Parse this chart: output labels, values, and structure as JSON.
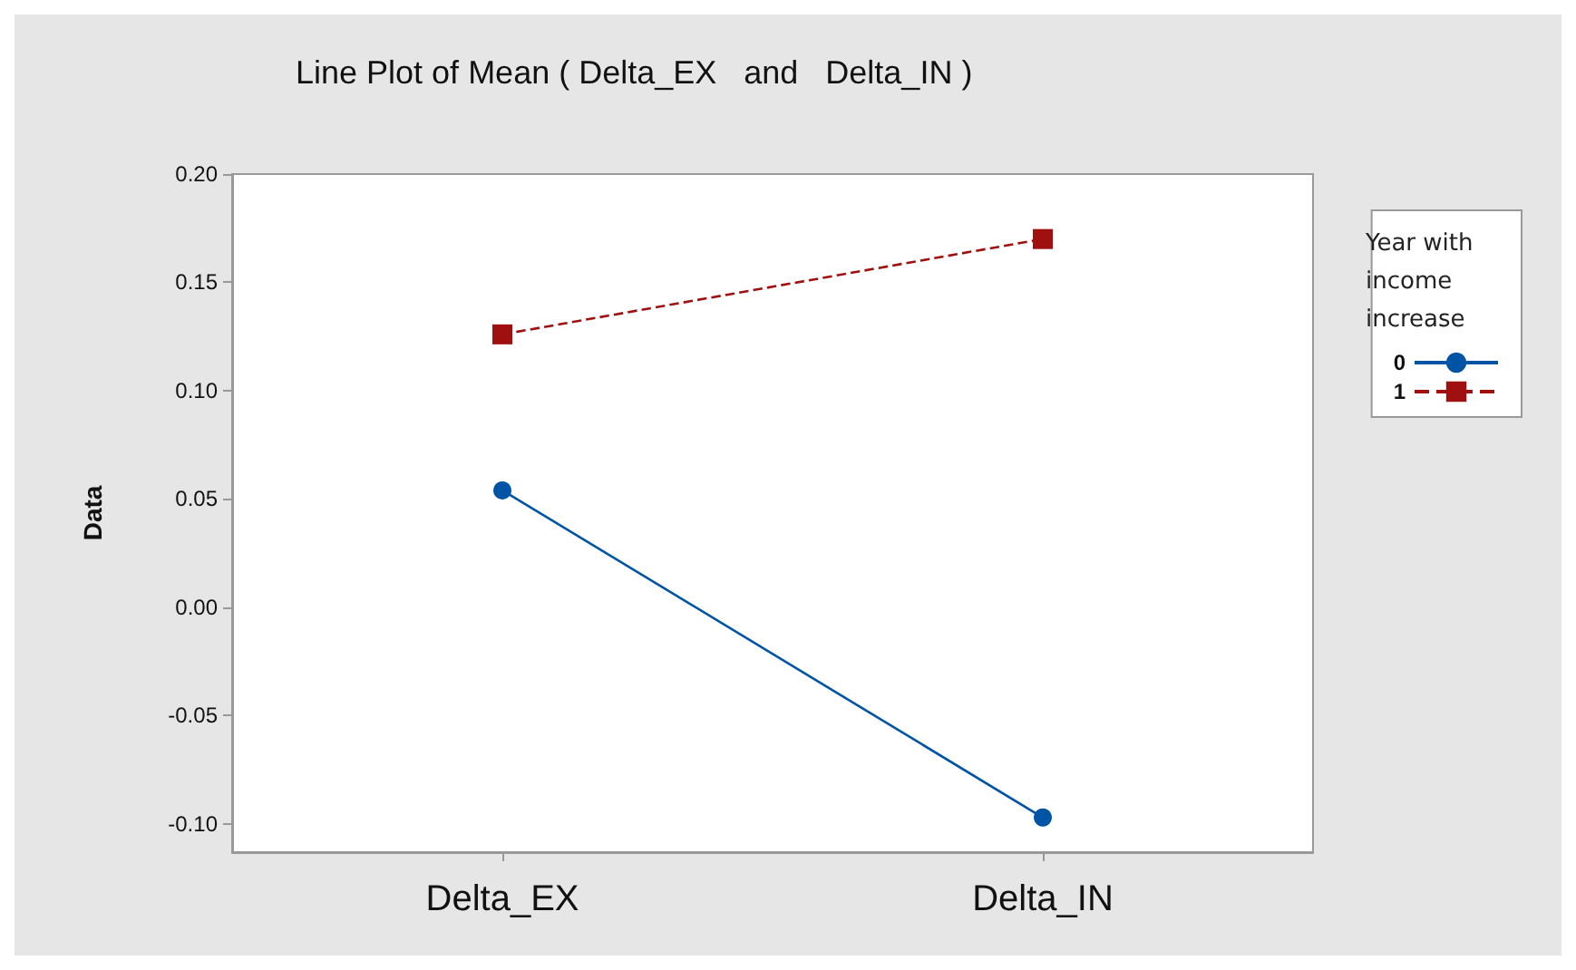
{
  "chart_data": {
    "type": "line",
    "title": "Line Plot of Mean ( Delta_EX   and   Delta_IN )",
    "ylabel": "Data",
    "legend_title": "Year with income increase",
    "categories": [
      "Delta_EX",
      "Delta_IN"
    ],
    "series": [
      {
        "name": "0",
        "color": "#0054a6",
        "values": [
          0.054,
          -0.097
        ],
        "marker": "circle",
        "line_style": "solid"
      },
      {
        "name": "1",
        "color": "#a01010",
        "values": [
          0.126,
          0.17
        ],
        "marker": "square",
        "line_style": "dashed"
      }
    ],
    "ylim": [
      -0.113,
      0.2
    ],
    "yticks": [
      {
        "value": -0.1,
        "label": "-0.10"
      },
      -0.05,
      {
        "value": 0,
        "label": "0.00"
      },
      0.05,
      {
        "value": 0.1,
        "label": "0.10"
      },
      0.15,
      {
        "value": 0.2,
        "label": "0.20"
      }
    ],
    "grid": false,
    "legend": "top right"
  }
}
